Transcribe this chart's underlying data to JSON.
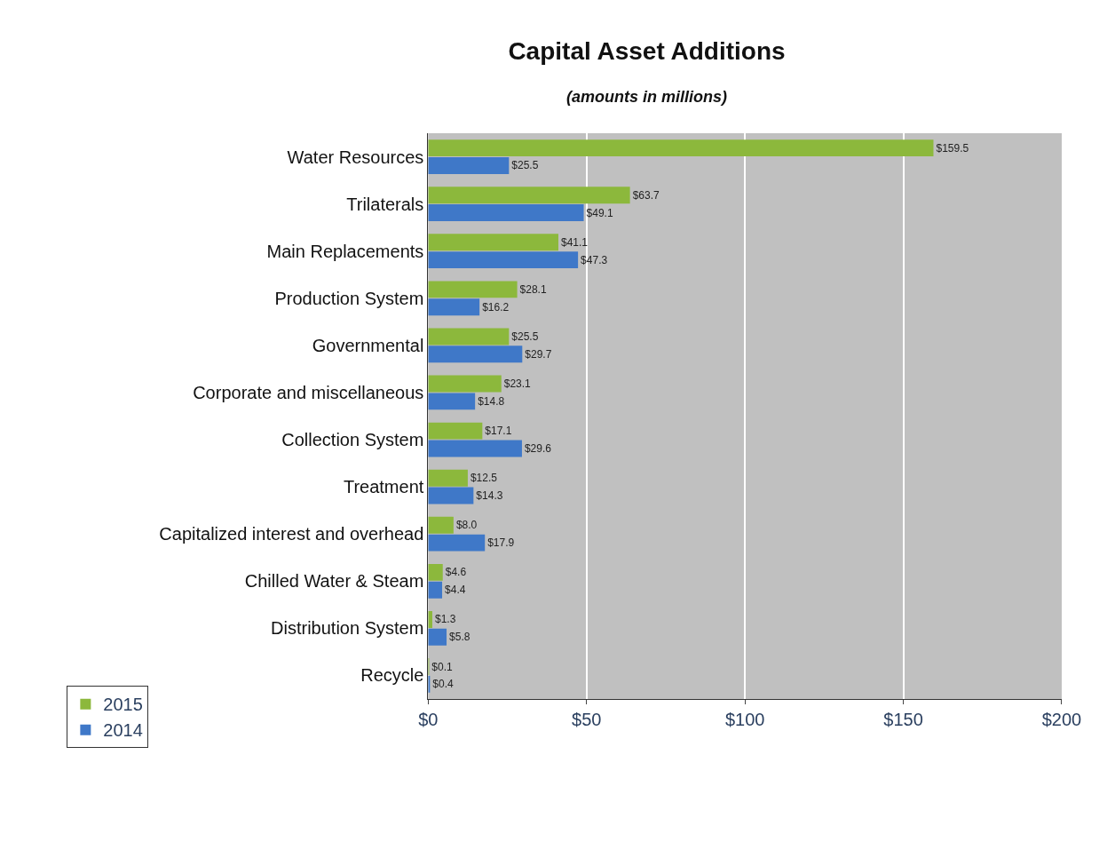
{
  "chart_data": {
    "type": "bar",
    "orientation": "horizontal",
    "title": "Capital Asset Additions",
    "subtitle": "(amounts in millions)",
    "categories": [
      "Water Resources",
      "Trilaterals",
      "Main Replacements",
      "Production System",
      "Governmental",
      "Corporate and miscellaneous",
      "Collection System",
      "Treatment",
      "Capitalized interest and overhead",
      "Chilled Water & Steam",
      "Distribution System",
      "Recycle"
    ],
    "series": [
      {
        "name": "2015",
        "color": "#8cb83c",
        "values": [
          159.5,
          63.7,
          41.1,
          28.1,
          25.5,
          23.1,
          17.1,
          12.5,
          8.0,
          4.6,
          1.3,
          0.1
        ],
        "value_labels": [
          "$159.5",
          "$63.7",
          "$41.1",
          "$28.1",
          "$25.5",
          "$23.1",
          "$17.1",
          "$12.5",
          "$8.0",
          "$4.6",
          "$1.3",
          "$0.1"
        ]
      },
      {
        "name": "2014",
        "color": "#3f78c8",
        "values": [
          25.5,
          49.1,
          47.3,
          16.2,
          29.7,
          14.8,
          29.6,
          14.3,
          17.9,
          4.4,
          5.8,
          0.4
        ],
        "value_labels": [
          "$25.5",
          "$49.1",
          "$47.3",
          "$16.2",
          "$29.7",
          "$14.8",
          "$29.6",
          "$14.3",
          "$17.9",
          "$4.4",
          "$5.8",
          "$0.4"
        ]
      }
    ],
    "xlim": [
      0,
      200
    ],
    "xticks": [
      {
        "value": 0,
        "label": "$0"
      },
      {
        "value": 50,
        "label": "$50"
      },
      {
        "value": 100,
        "label": "$100"
      },
      {
        "value": 150,
        "label": "$150"
      },
      {
        "value": 200,
        "label": "$200"
      }
    ],
    "grid": "x",
    "legend": "bottom left"
  }
}
